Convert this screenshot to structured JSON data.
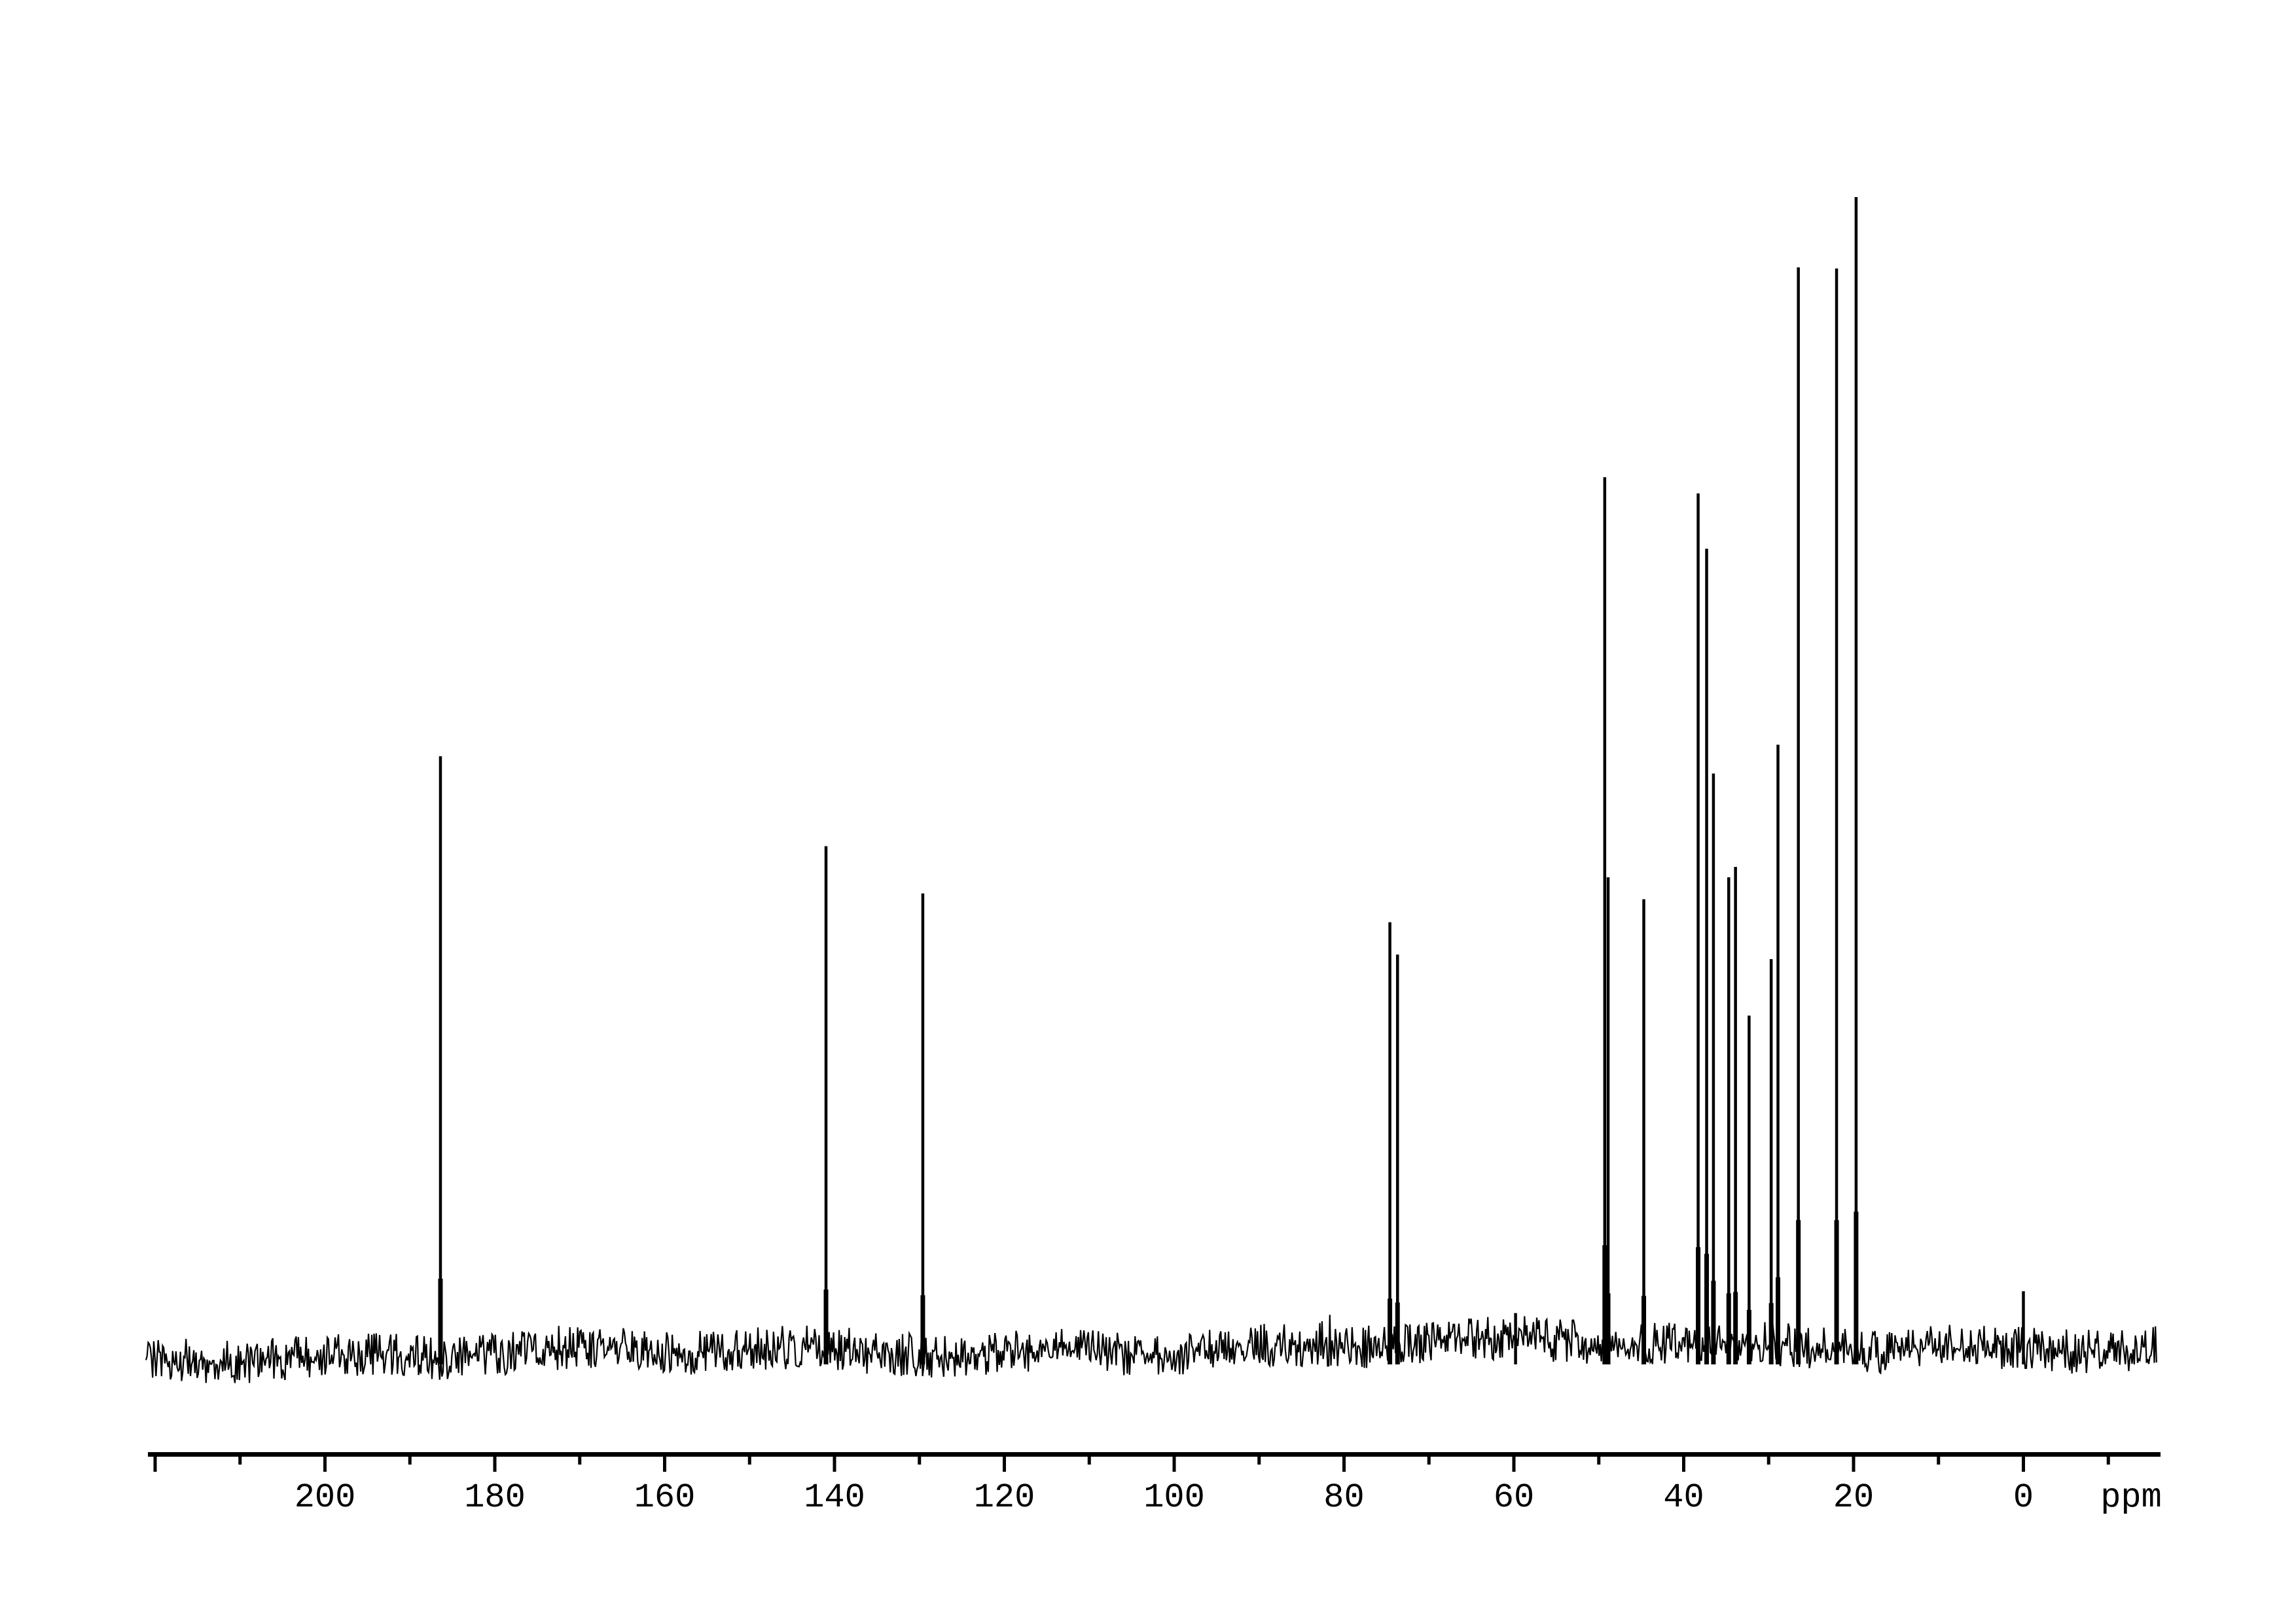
{
  "figure": {
    "background_color": "#ffffff",
    "ink_color": "#000000",
    "kind": "NMR spectrum trace, single black line on white, horizontal ppm axis at bottom"
  },
  "axis": {
    "unit_label": "ppm",
    "orientation": "reversed (high ppm left, 0 ppm right)",
    "range_ppm": [
      221,
      -16
    ],
    "tick_labels": [
      "200",
      "180",
      "160",
      "140",
      "120",
      "100",
      "80",
      "60",
      "40",
      "20",
      "0"
    ],
    "ticks": [
      {
        "ppm": 220,
        "major": true,
        "label": ""
      },
      {
        "ppm": 210,
        "major": false,
        "label": ""
      },
      {
        "ppm": 200,
        "major": true,
        "label": "200"
      },
      {
        "ppm": 190,
        "major": false,
        "label": ""
      },
      {
        "ppm": 180,
        "major": true,
        "label": "180"
      },
      {
        "ppm": 170,
        "major": false,
        "label": ""
      },
      {
        "ppm": 160,
        "major": true,
        "label": "160"
      },
      {
        "ppm": 150,
        "major": false,
        "label": ""
      },
      {
        "ppm": 140,
        "major": true,
        "label": "140"
      },
      {
        "ppm": 130,
        "major": false,
        "label": ""
      },
      {
        "ppm": 120,
        "major": true,
        "label": "120"
      },
      {
        "ppm": 110,
        "major": false,
        "label": ""
      },
      {
        "ppm": 100,
        "major": true,
        "label": "100"
      },
      {
        "ppm": 90,
        "major": false,
        "label": ""
      },
      {
        "ppm": 80,
        "major": true,
        "label": "80"
      },
      {
        "ppm": 70,
        "major": false,
        "label": ""
      },
      {
        "ppm": 60,
        "major": true,
        "label": "60"
      },
      {
        "ppm": 50,
        "major": false,
        "label": ""
      },
      {
        "ppm": 40,
        "major": true,
        "label": "40"
      },
      {
        "ppm": 30,
        "major": false,
        "label": ""
      },
      {
        "ppm": 20,
        "major": true,
        "label": "20"
      },
      {
        "ppm": 10,
        "major": false,
        "label": ""
      },
      {
        "ppm": 0,
        "major": true,
        "label": "0"
      },
      {
        "ppm": -10,
        "major": false,
        "label": ""
      }
    ]
  },
  "chart_data": {
    "type": "line",
    "subtype": "nmr-spectrum",
    "xlabel": "ppm",
    "ylabel": "",
    "x_reversed": true,
    "xlim": [
      221,
      -16
    ],
    "grid": false,
    "legend": "none",
    "intensity_note": "intensity is percent of tallest peak (peak at 19.7 ppm = 100)",
    "noise_band_intensity_pct": 3.8,
    "peaks": [
      {
        "ppm": 186.4,
        "intensity": 51.5
      },
      {
        "ppm": 141.0,
        "intensity": 43.7
      },
      {
        "ppm": 129.6,
        "intensity": 39.6
      },
      {
        "ppm": 74.6,
        "intensity": 37.1
      },
      {
        "ppm": 73.7,
        "intensity": 34.3
      },
      {
        "ppm": 59.8,
        "intensity": 3.2
      },
      {
        "ppm": 49.3,
        "intensity": 75.7
      },
      {
        "ppm": 48.9,
        "intensity": 41.0
      },
      {
        "ppm": 44.7,
        "intensity": 39.1
      },
      {
        "ppm": 38.3,
        "intensity": 74.3
      },
      {
        "ppm": 37.3,
        "intensity": 69.5
      },
      {
        "ppm": 36.5,
        "intensity": 50.0
      },
      {
        "ppm": 34.7,
        "intensity": 41.0
      },
      {
        "ppm": 33.9,
        "intensity": 41.9
      },
      {
        "ppm": 32.3,
        "intensity": 29.0
      },
      {
        "ppm": 29.7,
        "intensity": 33.9
      },
      {
        "ppm": 28.9,
        "intensity": 52.5
      },
      {
        "ppm": 26.5,
        "intensity": 93.9
      },
      {
        "ppm": 22.0,
        "intensity": 93.8
      },
      {
        "ppm": 19.7,
        "intensity": 100.0
      },
      {
        "ppm": 0.0,
        "intensity": 5.1
      }
    ]
  }
}
